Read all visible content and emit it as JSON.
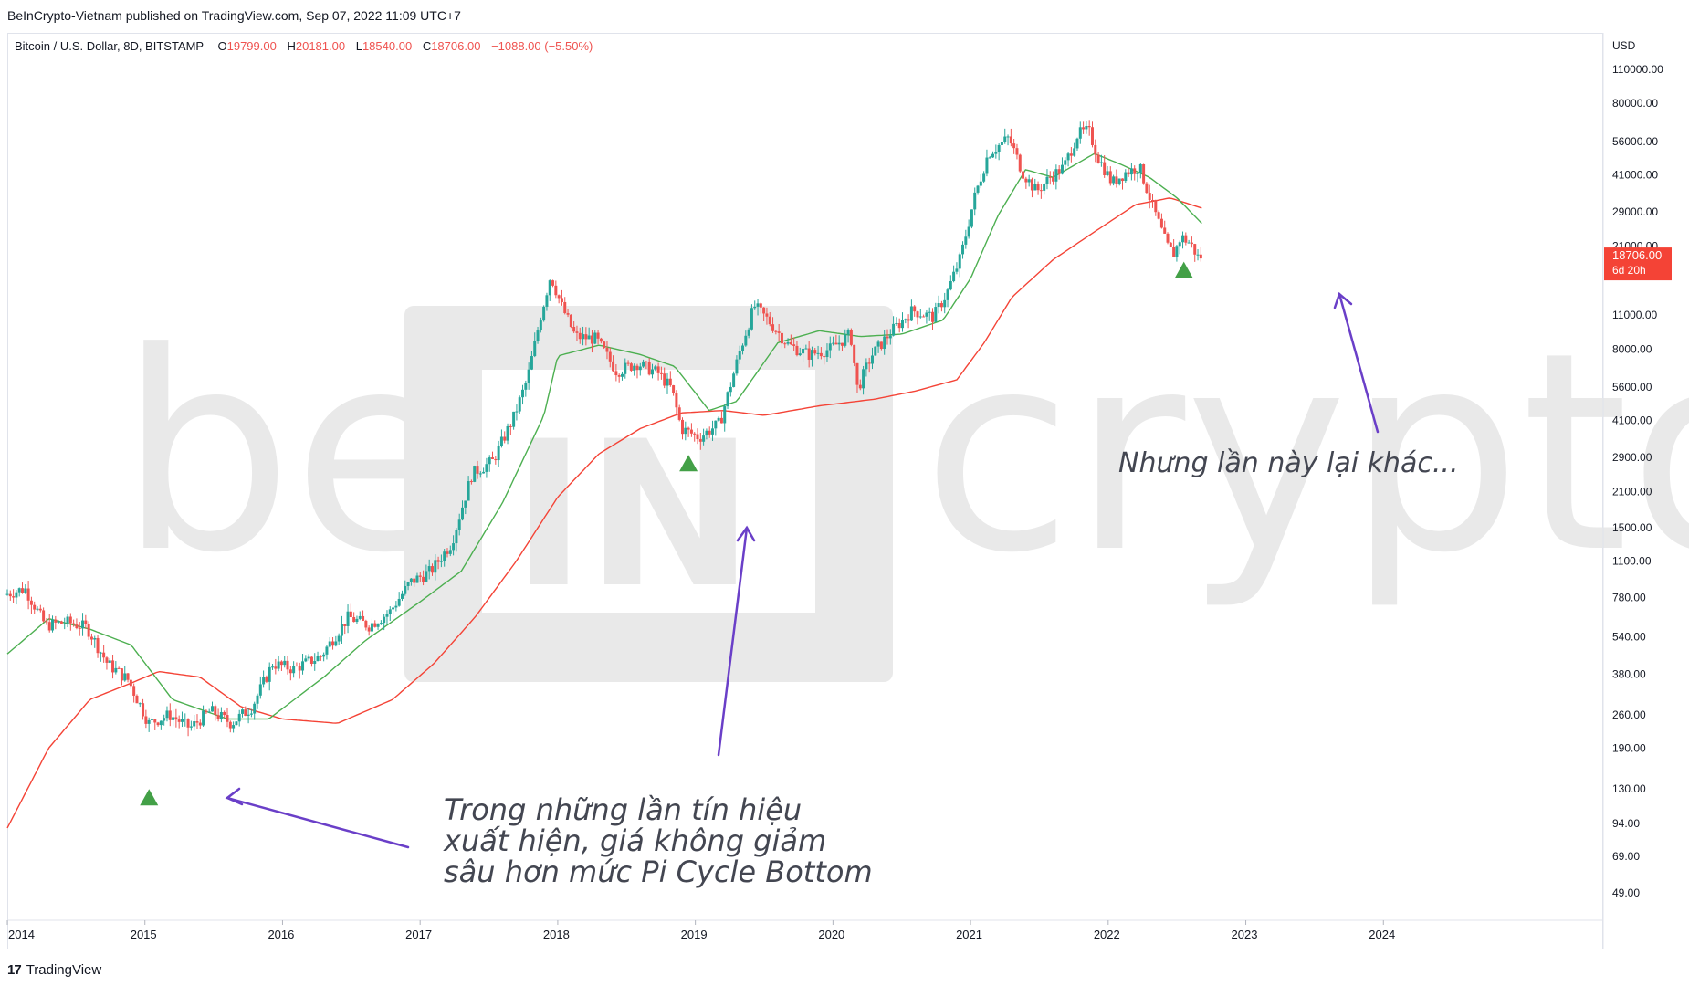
{
  "header": {
    "published": "BeInCrypto-Vietnam published on TradingView.com, Sep 07, 2022 11:09 UTC+7"
  },
  "legend": {
    "symbol": "Bitcoin / U.S. Dollar, 8D, BITSTAMP",
    "o_label": "O",
    "o": "19799.00",
    "h_label": "H",
    "h": "20181.00",
    "l_label": "L",
    "l": "18540.00",
    "c_label": "C",
    "c": "18706.00",
    "change": "−1088.00 (−5.50%)"
  },
  "watermark": {
    "left": "be",
    "middle": "IN",
    "right": "crypto"
  },
  "price_axis": {
    "currency": "USD",
    "last_price": "18706.00",
    "countdown": "6d 20h"
  },
  "annotations": {
    "note_1": [
      "Trong những lần tín hiệu",
      "xuất hiện, giá không giảm",
      "sâu hơn mức Pi Cycle Bottom"
    ],
    "note_2": "Nhưng lần này lại khác..."
  },
  "footer": {
    "brand": "TradingView",
    "logo": "17"
  },
  "colors": {
    "up": "#26a69a",
    "down": "#ef5350",
    "ma_fast": "#4caf50",
    "ma_slow": "#f44336",
    "signal": "#43a047",
    "arrow": "#6a3fc8",
    "price_badge": "#f44336",
    "watermark": "#e9e9e9"
  },
  "chart_data": {
    "type": "line",
    "scale": "log",
    "ylim": [
      40,
      120000
    ],
    "xlim": [
      "2014-01-01",
      "2025-01-01"
    ],
    "y_ticks": [
      110000,
      80000,
      56000,
      41000,
      29000,
      21000,
      11000,
      8000,
      5600,
      4100,
      2900,
      2100,
      1500,
      1100,
      780,
      540,
      380,
      260,
      190,
      130,
      94,
      69,
      49
    ],
    "y_tick_labels": [
      "110000.00",
      "80000.00",
      "56000.00",
      "41000.00",
      "29000.00",
      "21000.00",
      "11000.00",
      "8000.00",
      "5600.00",
      "4100.00",
      "2900.00",
      "2100.00",
      "1500.00",
      "1100.00",
      "780.00",
      "540.00",
      "380.00",
      "260.00",
      "190.00",
      "130.00",
      "94.00",
      "69.00",
      "49.00"
    ],
    "x_ticks": [
      "2014",
      "2015",
      "2016",
      "2017",
      "2018",
      "2019",
      "2020",
      "2021",
      "2022",
      "2023",
      "2024"
    ],
    "price_series": {
      "x": [
        2014.0,
        2014.15,
        2014.3,
        2014.45,
        2014.6,
        2014.75,
        2014.9,
        2015.05,
        2015.2,
        2015.35,
        2015.5,
        2015.65,
        2015.8,
        2015.95,
        2016.1,
        2016.3,
        2016.5,
        2016.65,
        2016.8,
        2016.95,
        2017.1,
        2017.25,
        2017.4,
        2017.55,
        2017.7,
        2017.8,
        2017.9,
        2017.97,
        2018.05,
        2018.15,
        2018.3,
        2018.45,
        2018.6,
        2018.75,
        2018.85,
        2018.92,
        2019.05,
        2019.2,
        2019.35,
        2019.45,
        2019.55,
        2019.7,
        2019.85,
        2020.0,
        2020.15,
        2020.2,
        2020.3,
        2020.45,
        2020.6,
        2020.75,
        2020.85,
        2020.95,
        2021.05,
        2021.15,
        2021.3,
        2021.4,
        2021.5,
        2021.6,
        2021.7,
        2021.8,
        2021.88,
        2021.95,
        2022.05,
        2022.15,
        2022.25,
        2022.35,
        2022.45,
        2022.5,
        2022.55,
        2022.62,
        2022.68
      ],
      "y": [
        800,
        850,
        600,
        620,
        590,
        420,
        360,
        240,
        260,
        230,
        270,
        240,
        280,
        420,
        400,
        450,
        650,
        600,
        680,
        900,
        1000,
        1300,
        2500,
        2800,
        4200,
        6000,
        11000,
        16000,
        12000,
        9000,
        8800,
        6500,
        7000,
        6400,
        5500,
        3800,
        3500,
        4000,
        8000,
        12000,
        10500,
        8300,
        7600,
        8000,
        9200,
        5500,
        7500,
        9500,
        11500,
        10800,
        13500,
        19000,
        33000,
        50000,
        58000,
        42000,
        35000,
        40000,
        44000,
        60000,
        62000,
        48000,
        38000,
        42000,
        44000,
        30000,
        21000,
        19500,
        23000,
        21500,
        18706
      ]
    },
    "ma_fast": {
      "x": [
        2014.0,
        2014.3,
        2014.6,
        2014.9,
        2015.2,
        2015.6,
        2015.9,
        2016.3,
        2016.6,
        2017.0,
        2017.3,
        2017.6,
        2017.9,
        2018.0,
        2018.3,
        2018.6,
        2018.85,
        2019.1,
        2019.3,
        2019.6,
        2019.9,
        2020.2,
        2020.5,
        2020.8,
        2021.0,
        2021.2,
        2021.4,
        2021.6,
        2021.9,
        2022.1,
        2022.3,
        2022.5,
        2022.68
      ],
      "y": [
        460,
        640,
        580,
        500,
        300,
        250,
        250,
        370,
        520,
        750,
        1000,
        1900,
        4300,
        7500,
        8300,
        7600,
        6800,
        4500,
        4900,
        8500,
        9500,
        9000,
        9200,
        10500,
        15500,
        28000,
        43000,
        40000,
        50000,
        45000,
        40000,
        33000,
        26000
      ]
    },
    "ma_slow": {
      "x": [
        2014.0,
        2014.3,
        2014.6,
        2014.9,
        2015.1,
        2015.4,
        2015.7,
        2016.0,
        2016.4,
        2016.8,
        2017.1,
        2017.4,
        2017.7,
        2018.0,
        2018.3,
        2018.6,
        2018.9,
        2019.2,
        2019.5,
        2019.9,
        2020.3,
        2020.6,
        2020.9,
        2021.1,
        2021.3,
        2021.6,
        2021.9,
        2022.2,
        2022.45,
        2022.68
      ],
      "y": [
        90,
        190,
        300,
        350,
        390,
        370,
        280,
        250,
        240,
        300,
        420,
        650,
        1100,
        2000,
        3000,
        3800,
        4400,
        4500,
        4300,
        4700,
        5000,
        5400,
        6000,
        8500,
        13000,
        18500,
        24000,
        31000,
        33000,
        30000
      ]
    },
    "signals": [
      {
        "x": 2015.03,
        "y": 120
      },
      {
        "x": 2018.95,
        "y": 2750
      },
      {
        "x": 2022.55,
        "y": 16800
      }
    ]
  }
}
